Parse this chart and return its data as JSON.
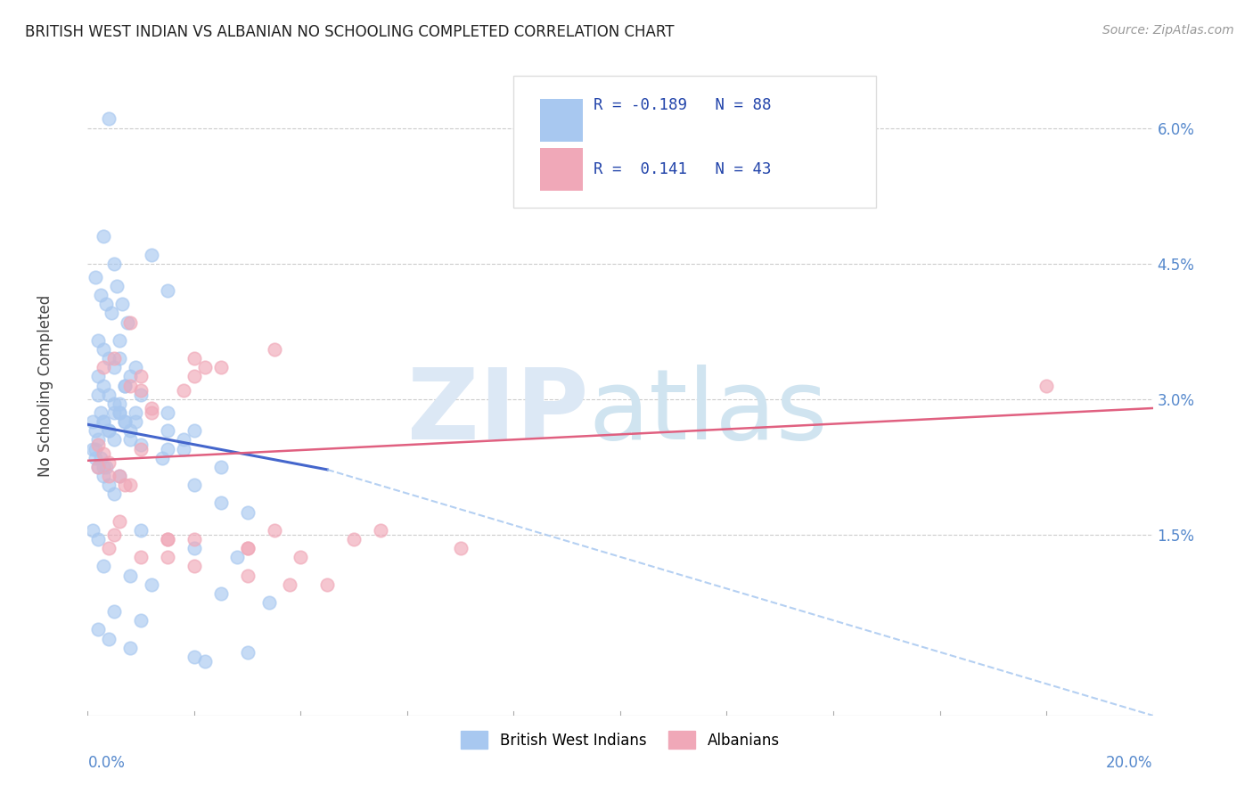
{
  "title": "BRITISH WEST INDIAN VS ALBANIAN NO SCHOOLING COMPLETED CORRELATION CHART",
  "source": "Source: ZipAtlas.com",
  "ylabel": "No Schooling Completed",
  "ytick_vals": [
    0.0,
    1.5,
    3.0,
    4.5,
    6.0
  ],
  "ytick_labels": [
    "",
    "1.5%",
    "3.0%",
    "4.5%",
    "6.0%"
  ],
  "xmin": 0.0,
  "xmax": 20.0,
  "ymin": -0.5,
  "ymax": 6.8,
  "blue_color": "#A8C8F0",
  "pink_color": "#F0A8B8",
  "trend_blue": "#4466CC",
  "trend_pink": "#E06080",
  "tick_color": "#5588CC",
  "grid_color": "#CCCCCC",
  "blue_dots_x": [
    0.4,
    0.3,
    0.5,
    1.2,
    1.5,
    0.15,
    0.25,
    0.35,
    0.45,
    0.55,
    0.65,
    0.75,
    0.2,
    0.3,
    0.4,
    0.5,
    0.6,
    0.7,
    0.2,
    0.3,
    0.4,
    0.5,
    0.6,
    0.2,
    0.3,
    0.4,
    0.5,
    0.6,
    0.7,
    0.8,
    0.1,
    0.15,
    0.2,
    0.25,
    0.3,
    0.4,
    0.5,
    0.6,
    0.7,
    0.8,
    0.9,
    1.0,
    1.5,
    2.0,
    2.5,
    0.1,
    0.15,
    0.2,
    0.3,
    0.4,
    0.5,
    0.15,
    0.25,
    0.35,
    1.5,
    2.0,
    2.5,
    3.0,
    0.1,
    0.2,
    1.0,
    2.0,
    2.8,
    0.3,
    0.8,
    1.2,
    2.5,
    3.4,
    0.5,
    1.0,
    0.2,
    0.4,
    0.8,
    2.0,
    2.2,
    3.0,
    1.5,
    1.8,
    0.3,
    0.6,
    1.8,
    0.9,
    1.4,
    0.6,
    0.8,
    1.0,
    0.7,
    0.9
  ],
  "blue_dots_y": [
    6.1,
    4.8,
    4.5,
    4.6,
    4.2,
    4.35,
    4.15,
    4.05,
    3.95,
    4.25,
    4.05,
    3.85,
    3.65,
    3.55,
    3.45,
    3.35,
    3.65,
    3.15,
    3.25,
    3.15,
    3.05,
    2.95,
    2.85,
    3.05,
    2.75,
    2.65,
    2.55,
    2.85,
    2.75,
    2.65,
    2.75,
    2.65,
    2.55,
    2.85,
    2.75,
    2.65,
    2.85,
    2.95,
    2.75,
    2.55,
    2.85,
    2.5,
    2.85,
    2.65,
    2.25,
    2.45,
    2.35,
    2.25,
    2.15,
    2.05,
    1.95,
    2.45,
    2.35,
    2.25,
    2.45,
    2.05,
    1.85,
    1.75,
    1.55,
    1.45,
    1.55,
    1.35,
    1.25,
    1.15,
    1.05,
    0.95,
    0.85,
    0.75,
    0.65,
    0.55,
    0.45,
    0.35,
    0.25,
    0.15,
    0.1,
    0.2,
    2.65,
    2.45,
    2.25,
    2.15,
    2.55,
    2.75,
    2.35,
    3.45,
    3.25,
    3.05,
    3.15,
    3.35
  ],
  "pink_dots_x": [
    0.2,
    0.3,
    0.4,
    0.5,
    0.6,
    0.8,
    1.0,
    1.2,
    1.5,
    2.0,
    2.5,
    3.0,
    3.5,
    0.4,
    0.6,
    0.8,
    1.0,
    1.5,
    2.0,
    3.0,
    5.0,
    0.3,
    0.5,
    0.7,
    1.0,
    1.5,
    0.2,
    0.4,
    0.8,
    1.2,
    2.0,
    3.5,
    7.0,
    1.0,
    2.0,
    3.0,
    4.5,
    18.0,
    5.5,
    3.8,
    4.0,
    2.2,
    1.8
  ],
  "pink_dots_y": [
    2.5,
    2.4,
    2.3,
    1.5,
    2.15,
    2.05,
    3.1,
    2.9,
    1.45,
    3.25,
    3.35,
    1.35,
    3.55,
    1.35,
    1.65,
    3.15,
    3.25,
    1.45,
    1.45,
    1.35,
    1.45,
    3.35,
    3.45,
    2.05,
    2.45,
    1.25,
    2.25,
    2.15,
    3.85,
    2.85,
    3.45,
    1.55,
    1.35,
    1.25,
    1.15,
    1.05,
    0.95,
    3.15,
    1.55,
    0.95,
    1.25,
    3.35,
    3.1
  ],
  "blue_trend_x0": 0.0,
  "blue_trend_x1": 4.5,
  "blue_trend_y0": 2.72,
  "blue_trend_y1": 2.22,
  "blue_dash_x0": 4.5,
  "blue_dash_x1": 20.0,
  "blue_dash_y0": 2.22,
  "blue_dash_y1": -0.5,
  "pink_trend_x0": 0.0,
  "pink_trend_x1": 20.0,
  "pink_trend_y0": 2.32,
  "pink_trend_y1": 2.9
}
